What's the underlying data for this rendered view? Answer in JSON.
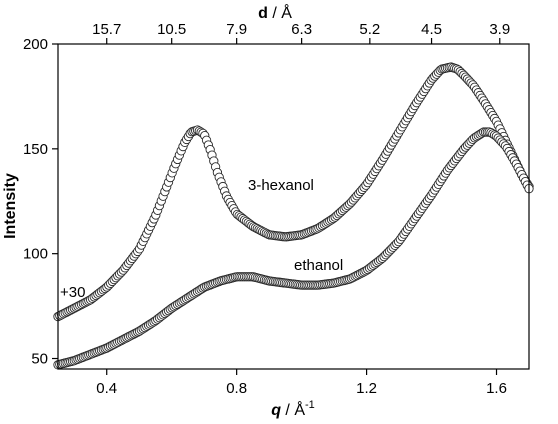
{
  "chart_data": {
    "type": "scatter",
    "xlabel_main": "q",
    "xlabel_rest": " / Å",
    "xlabel_sup": "-1",
    "ylabel": "Intensity",
    "top_axis_label_main": "d",
    "top_axis_label_rest": " / Å",
    "xlim": [
      0.25,
      1.7
    ],
    "ylim": [
      45,
      200
    ],
    "xticks": [
      0.4,
      0.8,
      1.2,
      1.6
    ],
    "xtick_labels": [
      "0.4",
      "0.8",
      "1.2",
      "1.6"
    ],
    "yticks": [
      50,
      100,
      150,
      200
    ],
    "ytick_labels": [
      "50",
      "100",
      "150",
      "200"
    ],
    "top_ticks": [
      {
        "label": "15.7",
        "q": 0.4
      },
      {
        "label": "10.5",
        "q": 0.6
      },
      {
        "label": "7.9",
        "q": 0.8
      },
      {
        "label": "6.3",
        "q": 1.0
      },
      {
        "label": "5.2",
        "q": 1.21
      },
      {
        "label": "4.5",
        "q": 1.4
      },
      {
        "label": "3.9",
        "q": 1.61
      }
    ],
    "annotations": {
      "hexanol": "3-hexanol",
      "ethanol": "ethanol",
      "offset": "+30"
    },
    "series": [
      {
        "name": "3-hexanol",
        "marker": "open-circle",
        "x": [
          0.25,
          0.3,
          0.35,
          0.4,
          0.45,
          0.5,
          0.55,
          0.58,
          0.61,
          0.64,
          0.66,
          0.68,
          0.7,
          0.72,
          0.74,
          0.77,
          0.8,
          0.85,
          0.9,
          0.95,
          1.0,
          1.05,
          1.1,
          1.15,
          1.2,
          1.25,
          1.3,
          1.35,
          1.4,
          1.43,
          1.46,
          1.48,
          1.5,
          1.53,
          1.56,
          1.6,
          1.64,
          1.68,
          1.7
        ],
        "y": [
          70,
          74,
          78,
          84,
          92,
          102,
          118,
          130,
          142,
          153,
          158,
          159,
          157,
          149,
          139,
          127,
          119,
          113,
          109,
          108,
          109,
          112,
          117,
          124,
          133,
          145,
          158,
          171,
          183,
          188,
          189,
          188,
          185,
          180,
          173,
          163,
          150,
          137,
          132
        ]
      },
      {
        "name": "ethanol",
        "marker": "open-circle",
        "x": [
          0.25,
          0.3,
          0.35,
          0.4,
          0.45,
          0.5,
          0.55,
          0.6,
          0.65,
          0.7,
          0.75,
          0.8,
          0.85,
          0.9,
          0.95,
          1.0,
          1.05,
          1.1,
          1.15,
          1.2,
          1.25,
          1.3,
          1.35,
          1.4,
          1.45,
          1.5,
          1.53,
          1.56,
          1.58,
          1.6,
          1.63,
          1.66,
          1.7
        ],
        "y": [
          47,
          49,
          52,
          55,
          59,
          63,
          68,
          74,
          79,
          84,
          87,
          89,
          89,
          87,
          86,
          85,
          85,
          86,
          88,
          92,
          98,
          106,
          117,
          128,
          140,
          150,
          155,
          158,
          158,
          156,
          151,
          143,
          131
        ]
      }
    ]
  }
}
